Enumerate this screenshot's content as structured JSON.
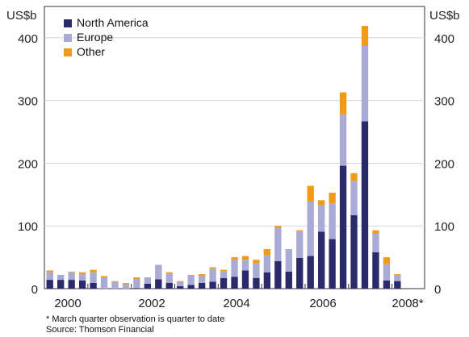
{
  "chart_data": {
    "type": "bar",
    "stacked": true,
    "y_unit_left": "US$b",
    "y_unit_right": "US$b",
    "ylim": [
      0,
      450
    ],
    "yticks": [
      0,
      100,
      200,
      300,
      400
    ],
    "x_tick_labels": [
      "2000",
      "2002",
      "2004",
      "2006",
      "2008*"
    ],
    "series": [
      {
        "name": "North America",
        "color": "#2b2b6b",
        "values": [
          14,
          14,
          14,
          13,
          9,
          0,
          0,
          0,
          1,
          8,
          15,
          9,
          4,
          6,
          9,
          11,
          17,
          19,
          29,
          17,
          26,
          44,
          27,
          49,
          52,
          91,
          79,
          196,
          117,
          267,
          58,
          13,
          12,
          0,
          0
        ]
      },
      {
        "name": "Europe",
        "color": "#aaaad6",
        "values": [
          12,
          8,
          12,
          10,
          17,
          18,
          11,
          7,
          14,
          10,
          23,
          15,
          7,
          15,
          11,
          21,
          11,
          27,
          17,
          24,
          27,
          53,
          36,
          42,
          87,
          42,
          57,
          82,
          55,
          120,
          30,
          26,
          9,
          0,
          0
        ]
      },
      {
        "name": "Other",
        "color": "#f09a1a",
        "values": [
          3,
          0,
          1,
          3,
          4,
          2,
          1,
          2,
          3,
          0,
          0,
          2,
          1,
          1,
          3,
          2,
          2,
          4,
          6,
          5,
          10,
          3,
          0,
          2,
          25,
          8,
          17,
          35,
          12,
          32,
          5,
          11,
          2,
          0,
          0
        ]
      }
    ],
    "footnote": "*   March quarter observation is quarter to date",
    "source": "Source: Thomson Financial"
  }
}
